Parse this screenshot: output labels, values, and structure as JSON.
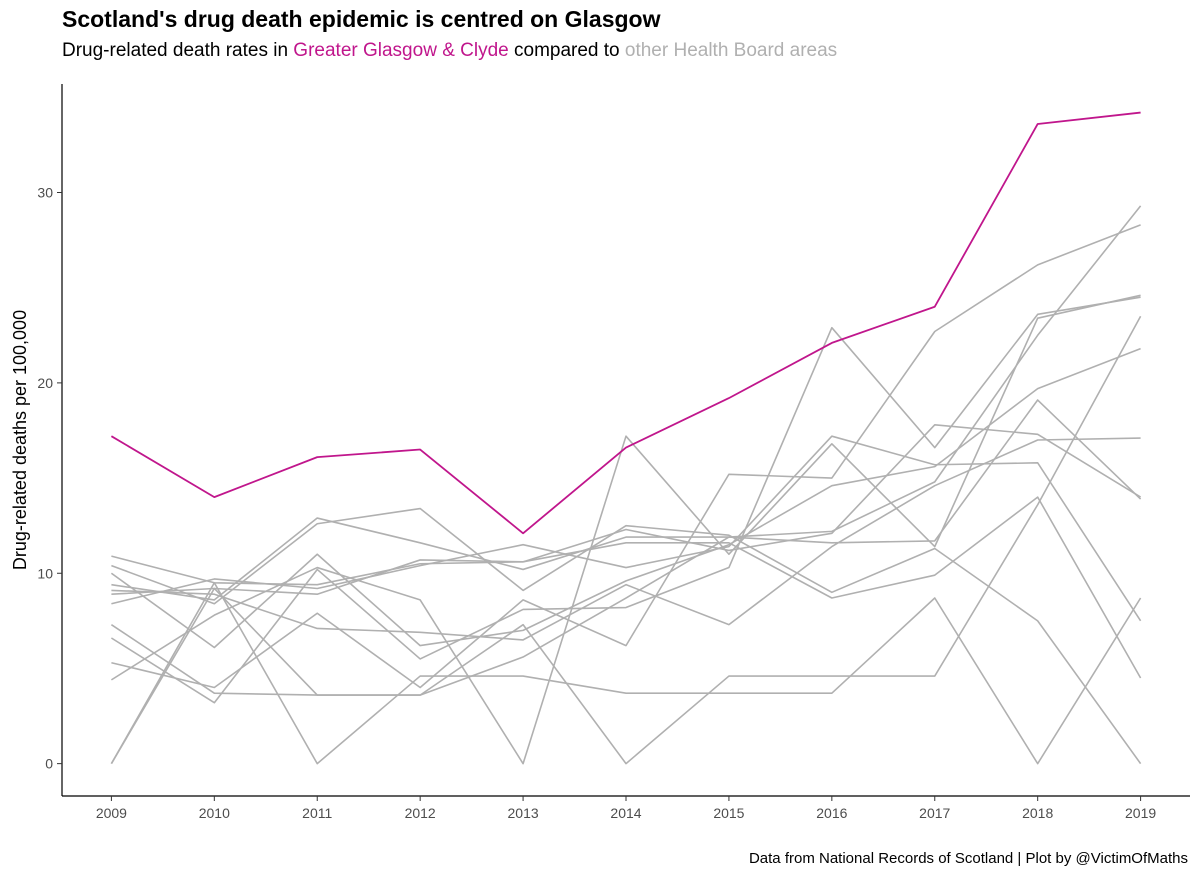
{
  "title": "Scotland's drug death epidemic is centred on Glasgow",
  "subtitle": {
    "prefix": "Drug-related death rates in ",
    "highlight": "Greater Glasgow & Clyde",
    "middle": " compared to ",
    "other": "other Health Board areas"
  },
  "caption": "Data from National Records of Scotland | Plot by @VictimOfMaths",
  "colors": {
    "highlight": "#c0168c",
    "other": "#b0b0b0"
  },
  "chart_data": {
    "type": "line",
    "ylabel": "Drug-related deaths per 100,000",
    "xlabel": "",
    "x": [
      2009,
      2010,
      2011,
      2012,
      2013,
      2014,
      2015,
      2016,
      2017,
      2018,
      2019
    ],
    "xticks": [
      "2009",
      "2010",
      "2011",
      "2012",
      "2013",
      "2014",
      "2015",
      "2016",
      "2017",
      "2018",
      "2019"
    ],
    "yticks": [
      "0",
      "10",
      "20",
      "30"
    ],
    "ylim": [
      -1.7,
      35.7
    ],
    "xlim": [
      2008.52,
      2019.48
    ],
    "grid": false,
    "series": [
      {
        "highlight": true,
        "values": [
          17.2,
          14.0,
          16.1,
          16.5,
          12.1,
          16.6,
          19.2,
          22.1,
          24.0,
          33.6,
          34.2
        ]
      },
      {
        "highlight": false,
        "values": [
          0.0,
          9.5,
          0.0,
          4.6,
          4.6,
          3.7,
          3.7,
          3.7,
          8.7,
          0.0,
          8.7
        ]
      },
      {
        "highlight": false,
        "values": [
          0.0,
          9.2,
          3.6,
          3.6,
          7.3,
          0.0,
          4.6,
          4.6,
          4.6,
          13.6,
          23.5
        ]
      },
      {
        "highlight": false,
        "values": [
          10.9,
          9.5,
          9.4,
          10.5,
          10.6,
          11.6,
          11.6,
          8.7,
          9.9,
          14.0,
          4.5
        ]
      },
      {
        "highlight": false,
        "values": [
          8.9,
          9.2,
          8.9,
          10.7,
          10.6,
          12.3,
          11.2,
          12.1,
          17.8,
          17.3,
          14.0
        ]
      },
      {
        "highlight": false,
        "values": [
          9.4,
          8.6,
          12.9,
          11.6,
          10.2,
          11.9,
          11.9,
          11.6,
          11.7,
          19.1,
          13.9
        ]
      },
      {
        "highlight": false,
        "values": [
          8.4,
          9.7,
          9.2,
          10.4,
          11.5,
          10.3,
          11.4,
          17.2,
          15.7,
          15.8,
          7.5
        ]
      },
      {
        "highlight": false,
        "values": [
          4.4,
          7.8,
          10.3,
          8.6,
          0.0,
          17.2,
          11.0,
          16.8,
          11.4,
          23.4,
          24.6
        ]
      },
      {
        "highlight": false,
        "values": [
          5.3,
          4.0,
          7.9,
          4.0,
          8.6,
          6.2,
          15.2,
          15.0,
          22.7,
          26.2,
          28.3
        ]
      },
      {
        "highlight": false,
        "values": [
          6.6,
          3.2,
          10.2,
          5.5,
          8.1,
          8.2,
          10.3,
          22.9,
          16.6,
          23.6,
          24.5
        ]
      },
      {
        "highlight": false,
        "values": [
          7.3,
          3.7,
          3.6,
          3.6,
          5.6,
          8.7,
          11.9,
          12.2,
          14.8,
          22.5,
          29.3
        ]
      },
      {
        "highlight": false,
        "values": [
          10.4,
          8.4,
          12.6,
          13.4,
          9.1,
          12.5,
          12.0,
          9.0,
          11.3,
          7.5,
          0.0
        ]
      },
      {
        "highlight": false,
        "values": [
          10.0,
          6.1,
          11.0,
          6.2,
          7.0,
          9.6,
          11.5,
          14.6,
          15.6,
          19.7,
          21.8
        ]
      },
      {
        "highlight": false,
        "values": [
          9.1,
          8.9,
          7.1,
          6.9,
          6.5,
          9.4,
          7.3,
          11.4,
          14.6,
          17.0,
          17.1
        ]
      }
    ]
  }
}
